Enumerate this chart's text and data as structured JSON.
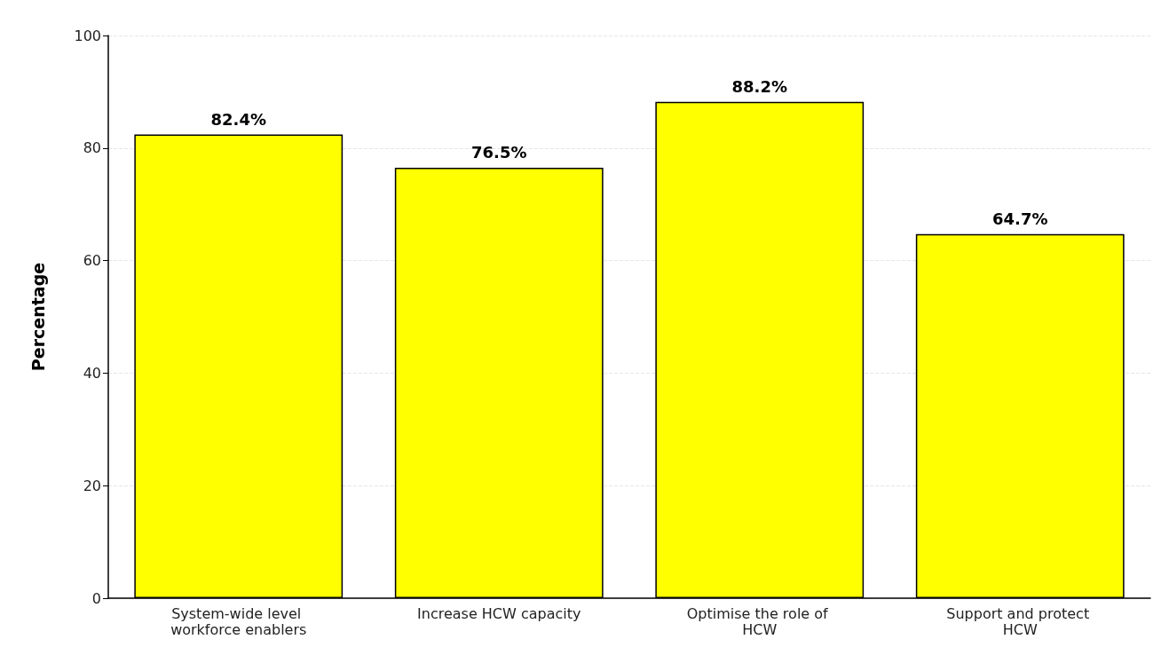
{
  "chart_data": {
    "type": "bar",
    "ylabel": "Percentage",
    "categories": [
      "System-wide level workforce enablers",
      "Increase HCW capacity",
      "Optimise the role of HCW",
      "Support and protect HCW"
    ],
    "values": [
      82.4,
      76.5,
      88.2,
      64.7
    ],
    "value_labels": [
      "82.4%",
      "76.5%",
      "88.2%",
      "64.7%"
    ],
    "color": "#ffff00",
    "ylim": [
      0,
      100
    ],
    "yticks": [
      0,
      20,
      40,
      60,
      80,
      100
    ],
    "grid": "y"
  }
}
